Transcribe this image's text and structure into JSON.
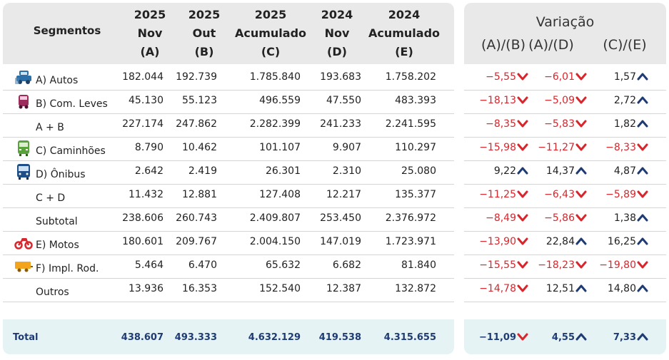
{
  "colors": {
    "negative": "#d8262c",
    "positive_arrow": "#1f3b73",
    "header_bg": "#e9e9e9",
    "total_bg": "#e6f3f5"
  },
  "left": {
    "segments_header": "Segmentos",
    "columns": [
      {
        "line1": "2025",
        "line2": "Nov",
        "line3": "(A)"
      },
      {
        "line1": "2025",
        "line2": "Out",
        "line3": "(B)"
      },
      {
        "line1": "2025",
        "line2": "Acumulado",
        "line3": "(C)"
      },
      {
        "line1": "2024",
        "line2": "Nov",
        "line3": "(D)"
      },
      {
        "line1": "2024",
        "line2": "Acumulado",
        "line3": "(E)"
      }
    ],
    "rows": [
      {
        "label": "A) Autos",
        "icon": "car-icon",
        "values": [
          "182.044",
          "192.739",
          "1.785.840",
          "193.683",
          "1.758.202"
        ]
      },
      {
        "label": "B) Com. Leves",
        "icon": "van-icon",
        "values": [
          "45.130",
          "55.123",
          "496.559",
          "47.550",
          "483.393"
        ]
      },
      {
        "label": "A + B",
        "icon": "",
        "values": [
          "227.174",
          "247.862",
          "2.282.399",
          "241.233",
          "2.241.595"
        ]
      },
      {
        "label": "C) Caminhões",
        "icon": "truck-icon",
        "values": [
          "8.790",
          "10.462",
          "101.107",
          "9.907",
          "110.297"
        ]
      },
      {
        "label": "D) Ônibus",
        "icon": "bus-icon",
        "values": [
          "2.642",
          "2.419",
          "26.301",
          "2.310",
          "25.080"
        ]
      },
      {
        "label": "C + D",
        "icon": "",
        "values": [
          "11.432",
          "12.881",
          "127.408",
          "12.217",
          "135.377"
        ]
      },
      {
        "label": "Subtotal",
        "icon": "",
        "values": [
          "238.606",
          "260.743",
          "2.409.807",
          "253.450",
          "2.376.972"
        ]
      },
      {
        "label": "E) Motos",
        "icon": "motorcycle-icon",
        "values": [
          "180.601",
          "209.767",
          "2.004.150",
          "147.019",
          "1.723.971"
        ]
      },
      {
        "label": "F) Impl. Rod.",
        "icon": "trailer-icon",
        "values": [
          "5.464",
          "6.470",
          "65.632",
          "6.682",
          "81.840"
        ]
      },
      {
        "label": "Outros",
        "icon": "",
        "values": [
          "13.936",
          "16.353",
          "152.540",
          "12.387",
          "132.872"
        ]
      }
    ],
    "total": {
      "label": "Total",
      "values": [
        "438.607",
        "493.333",
        "4.632.129",
        "419.538",
        "4.315.655"
      ]
    }
  },
  "right": {
    "title": "Variação",
    "columns": [
      "(A)/(B)",
      "(A)/(D)",
      "(C)/(E)"
    ],
    "rows": [
      [
        "−5,55",
        "−6,01",
        "1,57"
      ],
      [
        "−18,13",
        "−5,09",
        "2,72"
      ],
      [
        "−8,35",
        "−5,83",
        "1,82"
      ],
      [
        "−15,98",
        "−11,27",
        "−8,33"
      ],
      [
        "9,22",
        "14,37",
        "4,87"
      ],
      [
        "−11,25",
        "−6,43",
        "−5,89"
      ],
      [
        "−8,49",
        "−5,86",
        "1,38"
      ],
      [
        "−13,90",
        "22,84",
        "16,25"
      ],
      [
        "−15,55",
        "−18,23",
        "−19,80"
      ],
      [
        "−14,78",
        "12,51",
        "14,80"
      ]
    ],
    "total": [
      "−11,09",
      "4,55",
      "7,33"
    ]
  }
}
